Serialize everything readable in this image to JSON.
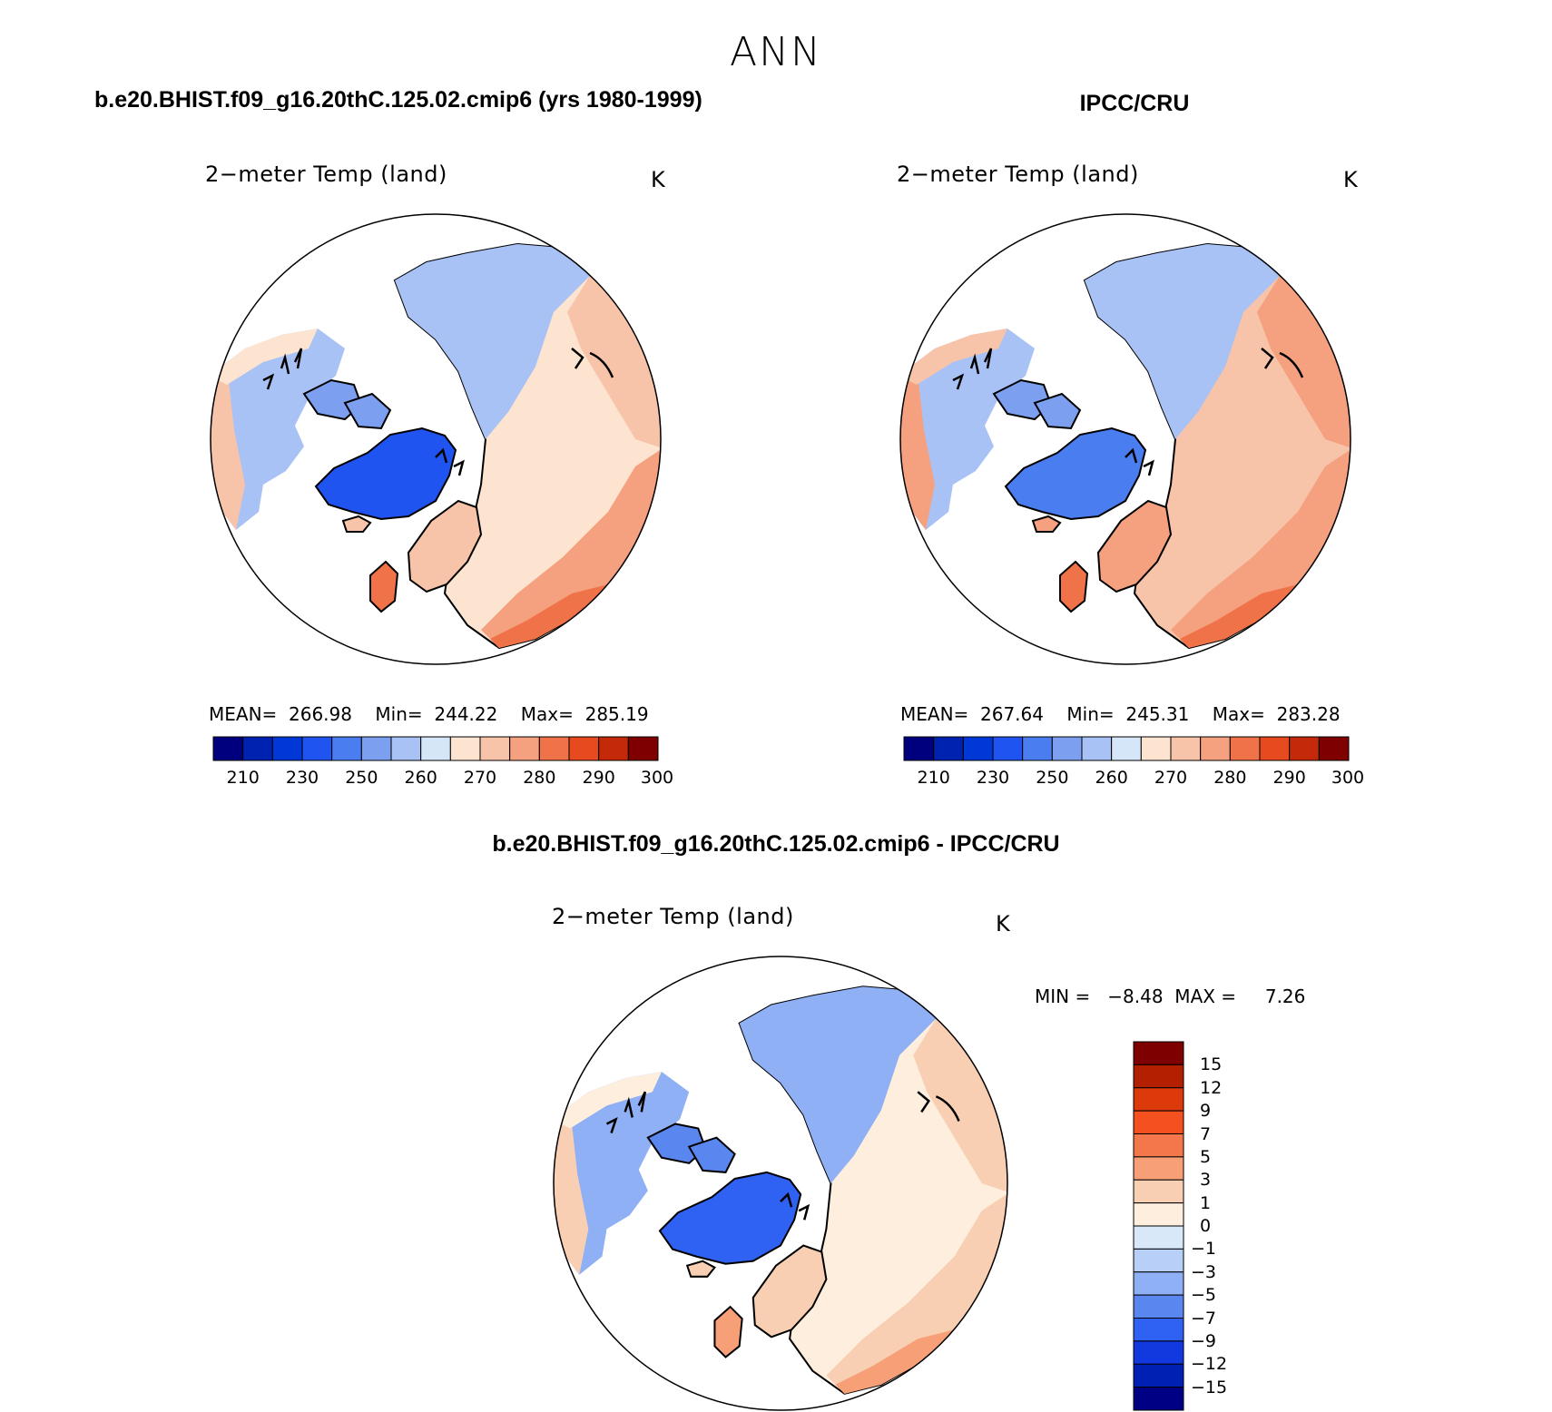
{
  "figure": {
    "title": "ANN",
    "bottom_title": "b.e20.BHIST.f09_g16.20thC.125.02.cmip6 - IPCC/CRU"
  },
  "panels": [
    {
      "case_title": "b.e20.BHIST.f09_g16.20thC.125.02.cmip6 (yrs 1980-1999)",
      "panel_title": "2−meter Temp (land)",
      "units": "K",
      "stats": "MEAN=  266.98    Min=  244.22    Max=  285.19",
      "colorbar_ticks": [
        "210",
        "230",
        "250",
        "260",
        "270",
        "280",
        "290",
        "300"
      ]
    },
    {
      "case_title": "IPCC/CRU",
      "panel_title": "2−meter Temp (land)",
      "units": "K",
      "stats": "MEAN=  267.64    Min=  245.31    Max=  283.28",
      "colorbar_ticks": [
        "210",
        "230",
        "250",
        "260",
        "270",
        "280",
        "290",
        "300"
      ]
    }
  ],
  "diff_panel": {
    "panel_title": "2−meter Temp (land)",
    "units": "K",
    "stats": "MIN =   −8.48  MAX =     7.26",
    "colorbar_ticks": [
      "15",
      "12",
      "9",
      "7",
      "5",
      "3",
      "1",
      "0",
      "−1",
      "−3",
      "−5",
      "−7",
      "−9",
      "−12",
      "−15"
    ]
  },
  "colors": {
    "abs_scale": [
      "#00007f",
      "#0022b0",
      "#0038d8",
      "#1f54f0",
      "#4a7ef0",
      "#7c9ff0",
      "#a9c2f5",
      "#d5e6f8",
      "#fde4d0",
      "#f8c4a9",
      "#f5a07e",
      "#f07248",
      "#e84a1f",
      "#c42a0a",
      "#7f0000"
    ],
    "diff_scale_top_to_bottom": [
      "#7f0000",
      "#b22000",
      "#dc3a0a",
      "#f55020",
      "#f3774a",
      "#f7a078",
      "#f9cfb4",
      "#fdeede",
      "#d8e8f8",
      "#b8d0f7",
      "#8fb0f4",
      "#5a86f0",
      "#2f62f2",
      "#1238e0",
      "#0020b4",
      "#000085"
    ]
  }
}
